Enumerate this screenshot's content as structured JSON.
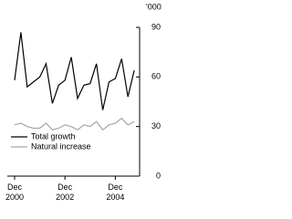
{
  "chart_data": {
    "type": "line",
    "y_label": "'000",
    "categories": [
      "Dec 2000",
      null,
      null,
      null,
      null,
      null,
      null,
      null,
      "Dec 2002",
      null,
      null,
      null,
      null,
      null,
      null,
      null,
      "Dec 2004",
      null,
      null,
      null
    ],
    "series": [
      {
        "name": "Total growth",
        "color": "#000000",
        "values": [
          58,
          87,
          54,
          57,
          60,
          68,
          44,
          55,
          58,
          72,
          47,
          55,
          56,
          68,
          40,
          57,
          59,
          71,
          48,
          64
        ]
      },
      {
        "name": "Natural increase",
        "color": "#a6a6a6",
        "values": [
          31,
          32,
          30,
          29,
          29,
          32,
          28,
          29,
          31,
          30,
          28,
          31,
          30,
          33,
          28,
          31,
          32,
          35,
          31,
          33
        ]
      }
    ],
    "ylim": [
      0,
      90
    ],
    "yticks": [
      0,
      30,
      60,
      90
    ],
    "grid": false,
    "legend": "lower left"
  }
}
